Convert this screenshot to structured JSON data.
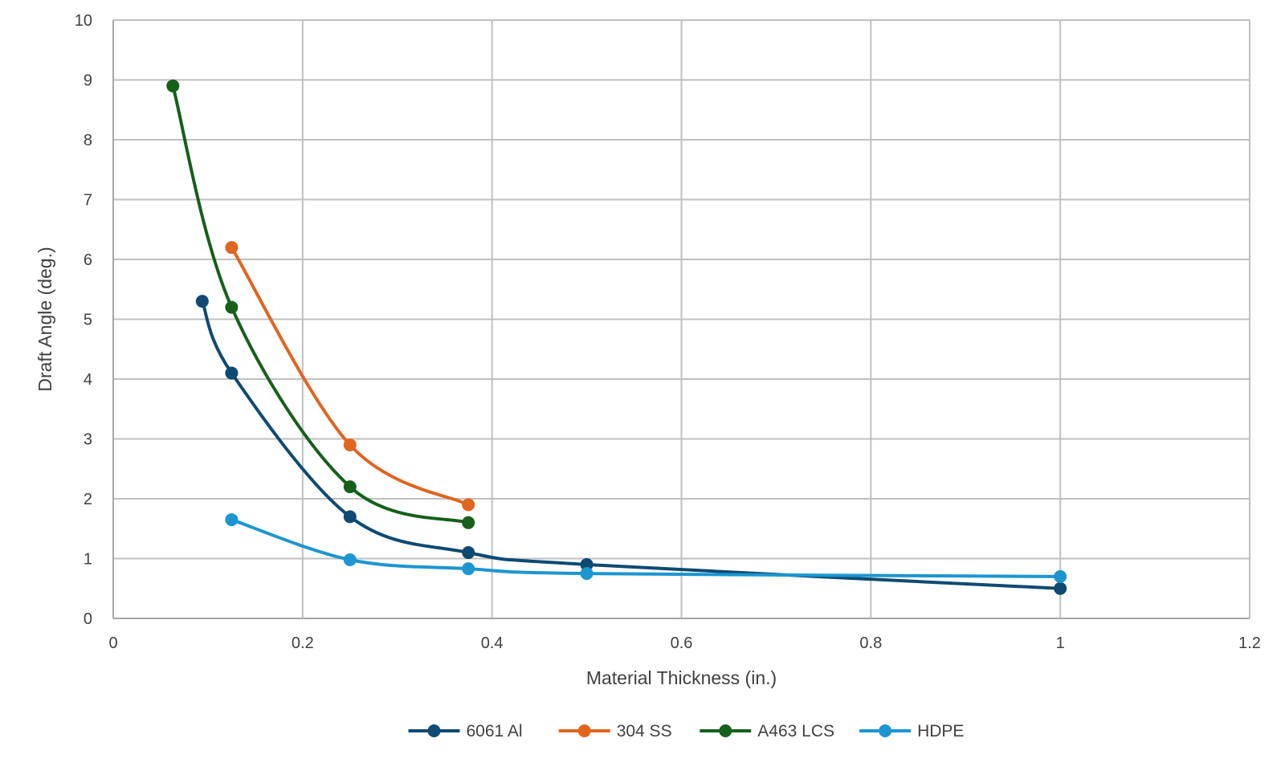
{
  "chart_data": {
    "type": "scatter",
    "title": "",
    "xlabel": "Material Thickness (in.)",
    "ylabel": "Draft Angle (deg.)",
    "xlim": [
      0,
      1.2
    ],
    "ylim": [
      0,
      10
    ],
    "x_ticks": [
      0,
      0.2,
      0.4,
      0.6,
      0.8,
      1,
      1.2
    ],
    "x_tick_labels": [
      "0",
      "0.2",
      "0.4",
      "0.6",
      "0.8",
      "1",
      "1.2"
    ],
    "y_ticks": [
      0,
      1,
      2,
      3,
      4,
      5,
      6,
      7,
      8,
      9,
      10
    ],
    "y_tick_labels": [
      "0",
      "1",
      "2",
      "3",
      "4",
      "5",
      "6",
      "7",
      "8",
      "9",
      "10"
    ],
    "grid": true,
    "legend_position": "bottom",
    "smoothed_lines": true,
    "series": [
      {
        "name": "6061 Al",
        "color": "#0e4a72",
        "x": [
          0.094,
          0.125,
          0.25,
          0.375,
          0.5,
          1
        ],
        "y": [
          5.3,
          4.1,
          1.7,
          1.1,
          0.9,
          0.5
        ]
      },
      {
        "name": "304 SS",
        "color": "#e0651e",
        "x": [
          0.125,
          0.25,
          0.375
        ],
        "y": [
          6.2,
          2.9,
          1.9
        ]
      },
      {
        "name": "A463 LCS",
        "color": "#15601b",
        "x": [
          0.063,
          0.125,
          0.25,
          0.375
        ],
        "y": [
          8.9,
          5.2,
          2.2,
          1.6
        ]
      },
      {
        "name": "HDPE",
        "color": "#1c96d0",
        "x": [
          0.125,
          0.25,
          0.375,
          0.5,
          1
        ],
        "y": [
          1.65,
          0.98,
          0.83,
          0.75,
          0.7
        ]
      }
    ]
  }
}
